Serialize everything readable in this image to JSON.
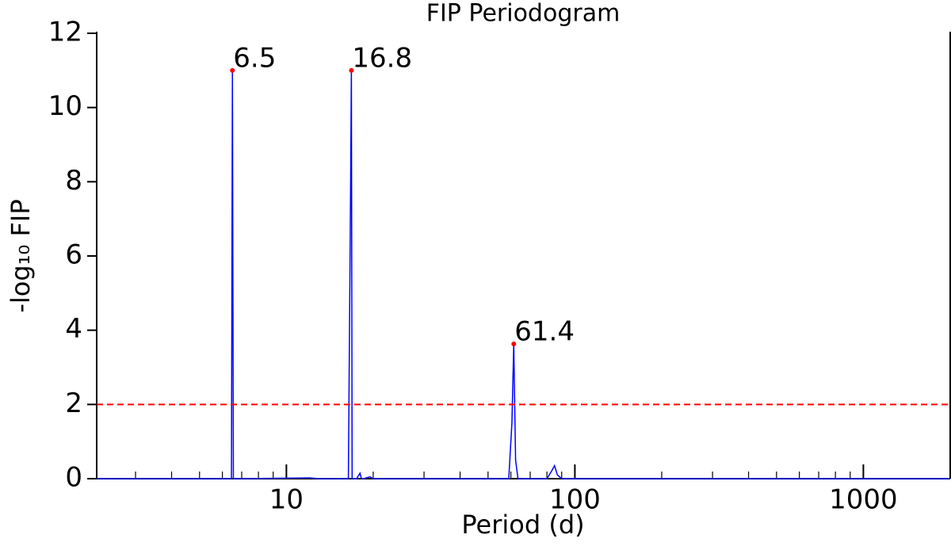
{
  "chart_data": {
    "type": "line",
    "title": "FIP Periodogram",
    "xlabel": "Period (d)",
    "ylabel": "-log₁₀ FIP",
    "x": [
      2.2,
      6.3,
      6.45,
      6.5,
      6.55,
      7,
      12,
      13,
      16.4,
      16.7,
      16.8,
      16.9,
      17.5,
      18,
      18.2,
      18.5,
      19.5,
      20,
      21,
      59,
      60.5,
      61.4,
      62.3,
      63.5,
      80,
      83,
      85,
      87,
      90,
      2000
    ],
    "series": [
      {
        "color": "#0000ff",
        "values": [
          0,
          0,
          0,
          11,
          0,
          0,
          0.02,
          0,
          0,
          8,
          11,
          0,
          0,
          0.15,
          0,
          0,
          0.05,
          0,
          0,
          0,
          1.5,
          3.63,
          0.5,
          0,
          0,
          0.2,
          0.35,
          0.1,
          0,
          0
        ]
      }
    ],
    "peaks": {
      "x": [
        6.5,
        16.8,
        61.4
      ],
      "y": [
        11,
        11,
        3.63
      ],
      "labels": [
        "6.5",
        "16.8",
        "61.4"
      ],
      "color": "#ff0000"
    },
    "threshold": {
      "y": 2,
      "color": "#ff0000",
      "dashed": true
    },
    "xscale": "log",
    "xlim": [
      2.2,
      2000
    ],
    "xticks": [
      10,
      100,
      1000
    ],
    "xminorticks": [
      3,
      4,
      5,
      6,
      7,
      8,
      9,
      20,
      30,
      40,
      50,
      60,
      70,
      80,
      90,
      200,
      300,
      400,
      500,
      600,
      700,
      800,
      900,
      2000
    ],
    "ylim": [
      0,
      12
    ],
    "yticks": [
      0,
      2,
      4,
      6,
      8,
      10,
      12
    ]
  }
}
